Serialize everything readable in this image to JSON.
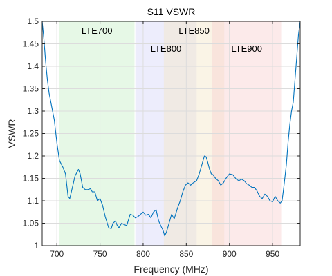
{
  "chart_data": {
    "type": "line",
    "title": "S11 VSWR",
    "xlabel": "Frequency (MHz)",
    "ylabel": "VSWR",
    "xlim": [
      683,
      982
    ],
    "ylim": [
      1,
      1.5
    ],
    "grid": true,
    "x_ticks": [
      700,
      750,
      800,
      850,
      900,
      950
    ],
    "y_ticks": [
      1,
      1.05,
      1.1,
      1.15,
      1.2,
      1.25,
      1.3,
      1.35,
      1.4,
      1.45,
      1.5
    ],
    "x_tick_labels": [
      "700",
      "750",
      "800",
      "850",
      "900",
      "950"
    ],
    "y_tick_labels": [
      "1",
      "1.05",
      "1.1",
      "1.15",
      "1.2",
      "1.25",
      "1.3",
      "1.35",
      "1.4",
      "1.45",
      "1.5"
    ],
    "bands": [
      {
        "name": "LTE700",
        "range": [
          703,
          790
        ],
        "color": "#c8f0c8",
        "label_row": 1
      },
      {
        "name": "LTE800",
        "range": [
          791,
          862
        ],
        "color": "#d8d8f8",
        "label_row": 2
      },
      {
        "name": "LTE850",
        "range": [
          824,
          894
        ],
        "color": "#f5e6c8",
        "label_row": 1
      },
      {
        "name": "LTE900",
        "range": [
          880,
          960
        ],
        "color": "#f8d0d0",
        "label_row": 2
      }
    ],
    "series": [
      {
        "color": "#0072bd",
        "x": [
          683,
          685,
          687,
          689,
          691,
          693,
          695,
          697,
          700,
          703,
          707,
          710,
          713,
          715,
          718,
          721,
          725,
          727,
          730,
          733,
          736,
          739,
          741,
          744,
          747,
          750,
          753,
          756,
          760,
          763,
          765,
          768,
          770,
          772,
          775,
          778,
          781,
          785,
          788,
          791,
          794,
          797,
          800,
          803,
          806,
          809,
          812,
          815,
          818,
          821,
          823,
          825,
          827,
          830,
          833,
          836,
          840,
          843,
          846,
          849,
          852,
          855,
          858,
          862,
          865,
          868,
          871,
          873,
          875,
          877,
          879,
          881,
          884,
          887,
          890,
          893,
          896,
          900,
          904,
          908,
          911,
          914,
          917,
          920,
          923,
          926,
          929,
          932,
          935,
          938,
          941,
          944,
          947,
          950,
          953,
          956,
          959,
          961,
          963,
          966,
          968,
          970,
          972,
          974,
          976,
          978,
          980,
          982
        ],
        "y": [
          1.5,
          1.46,
          1.41,
          1.37,
          1.34,
          1.32,
          1.3,
          1.28,
          1.23,
          1.19,
          1.175,
          1.16,
          1.11,
          1.105,
          1.13,
          1.155,
          1.17,
          1.16,
          1.13,
          1.125,
          1.125,
          1.127,
          1.12,
          1.12,
          1.1,
          1.105,
          1.09,
          1.065,
          1.04,
          1.038,
          1.05,
          1.055,
          1.045,
          1.04,
          1.05,
          1.047,
          1.045,
          1.07,
          1.068,
          1.062,
          1.065,
          1.07,
          1.075,
          1.068,
          1.07,
          1.062,
          1.075,
          1.08,
          1.055,
          1.042,
          1.035,
          1.022,
          1.03,
          1.05,
          1.07,
          1.06,
          1.085,
          1.1,
          1.12,
          1.135,
          1.14,
          1.135,
          1.14,
          1.145,
          1.16,
          1.18,
          1.2,
          1.198,
          1.185,
          1.17,
          1.16,
          1.158,
          1.15,
          1.145,
          1.135,
          1.14,
          1.15,
          1.16,
          1.158,
          1.148,
          1.145,
          1.148,
          1.145,
          1.138,
          1.135,
          1.13,
          1.13,
          1.122,
          1.11,
          1.105,
          1.115,
          1.11,
          1.1,
          1.098,
          1.11,
          1.1,
          1.095,
          1.1,
          1.13,
          1.18,
          1.23,
          1.27,
          1.3,
          1.32,
          1.37,
          1.42,
          1.47,
          1.5
        ]
      }
    ]
  }
}
